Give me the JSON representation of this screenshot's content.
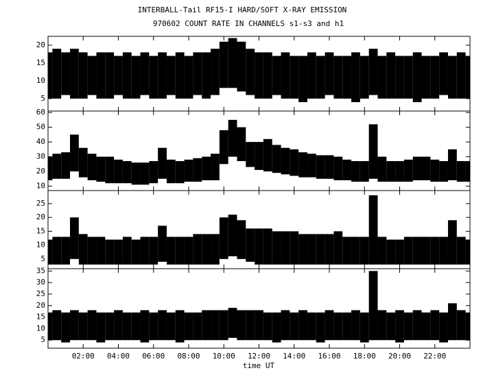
{
  "chart_data": [
    {
      "type": "band",
      "title": "INTERBALL-Tail RF15-I HARD/SOFT X-RAY EMISSION",
      "subtitle": "970602  COUNT RATE IN CHANNELS s1-s3 and h1",
      "color": "#000000",
      "xlim": [
        0,
        24
      ],
      "ylim": [
        1.5,
        22.5
      ],
      "yticks": [
        5,
        10,
        15,
        20
      ],
      "x": [
        0,
        0.5,
        1,
        1.5,
        2,
        2.5,
        3,
        3.5,
        4,
        4.5,
        5,
        5.5,
        6,
        6.5,
        7,
        7.5,
        8,
        8.5,
        9,
        9.5,
        10,
        10.5,
        11,
        11.5,
        12,
        12.5,
        13,
        13.5,
        14,
        14.5,
        15,
        15.5,
        16,
        16.5,
        17,
        17.5,
        18,
        18.5,
        19,
        19.5,
        20,
        20.5,
        21,
        21.5,
        22,
        22.5,
        23,
        23.5,
        24
      ],
      "high": [
        18,
        19,
        18,
        19,
        18,
        17,
        18,
        18,
        17,
        18,
        17,
        18,
        17,
        18,
        17,
        18,
        17,
        18,
        18,
        19,
        21,
        22,
        21,
        19,
        18,
        18,
        17,
        18,
        17,
        17,
        18,
        17,
        18,
        17,
        17,
        18,
        17,
        19,
        17,
        18,
        17,
        17,
        18,
        17,
        17,
        18,
        17,
        18,
        17
      ],
      "low": [
        5,
        5,
        6,
        5,
        5,
        6,
        5,
        5,
        6,
        5,
        5,
        6,
        5,
        5,
        6,
        5,
        5,
        6,
        5,
        6,
        8,
        8,
        7,
        6,
        5,
        5,
        6,
        5,
        5,
        4,
        5,
        5,
        6,
        5,
        5,
        4,
        5,
        6,
        5,
        5,
        5,
        5,
        4,
        5,
        5,
        6,
        5,
        5,
        5
      ]
    },
    {
      "type": "band",
      "color": "#000000",
      "xlim": [
        0,
        24
      ],
      "ylim": [
        7,
        61
      ],
      "yticks": [
        10,
        20,
        30,
        40,
        50,
        60
      ],
      "x": [
        0,
        0.5,
        1,
        1.5,
        2,
        2.5,
        3,
        3.5,
        4,
        4.5,
        5,
        5.5,
        6,
        6.5,
        7,
        7.5,
        8,
        8.5,
        9,
        9.5,
        10,
        10.5,
        11,
        11.5,
        12,
        12.5,
        13,
        13.5,
        14,
        14.5,
        15,
        15.5,
        16,
        16.5,
        17,
        17.5,
        18,
        18.5,
        19,
        19.5,
        20,
        20.5,
        21,
        21.5,
        22,
        22.5,
        23,
        23.5,
        24
      ],
      "high": [
        30,
        32,
        33,
        45,
        36,
        32,
        30,
        30,
        28,
        27,
        26,
        26,
        27,
        36,
        28,
        27,
        28,
        29,
        30,
        32,
        48,
        55,
        50,
        40,
        40,
        42,
        38,
        36,
        35,
        33,
        32,
        31,
        31,
        30,
        28,
        27,
        27,
        52,
        30,
        27,
        27,
        28,
        30,
        30,
        28,
        27,
        35,
        27,
        27
      ],
      "low": [
        14,
        15,
        15,
        20,
        16,
        14,
        13,
        12,
        12,
        12,
        11,
        11,
        12,
        15,
        12,
        12,
        13,
        13,
        14,
        14,
        25,
        30,
        27,
        23,
        21,
        20,
        19,
        18,
        17,
        16,
        16,
        15,
        15,
        14,
        14,
        13,
        13,
        15,
        13,
        13,
        13,
        13,
        14,
        14,
        13,
        13,
        14,
        13,
        13
      ]
    },
    {
      "type": "band",
      "color": "#000000",
      "xlim": [
        0,
        24
      ],
      "ylim": [
        1.5,
        29.7
      ],
      "yticks": [
        5,
        10,
        15,
        20,
        25
      ],
      "x": [
        0,
        0.5,
        1,
        1.5,
        2,
        2.5,
        3,
        3.5,
        4,
        4.5,
        5,
        5.5,
        6,
        6.5,
        7,
        7.5,
        8,
        8.5,
        9,
        9.5,
        10,
        10.5,
        11,
        11.5,
        12,
        12.5,
        13,
        13.5,
        14,
        14.5,
        15,
        15.5,
        16,
        16.5,
        17,
        17.5,
        18,
        18.5,
        19,
        19.5,
        20,
        20.5,
        21,
        21.5,
        22,
        22.5,
        23,
        23.5,
        24
      ],
      "high": [
        12,
        13,
        13,
        20,
        14,
        13,
        13,
        12,
        12,
        13,
        12,
        13,
        13,
        17,
        13,
        13,
        13,
        14,
        14,
        14,
        20,
        21,
        19,
        16,
        16,
        16,
        15,
        15,
        15,
        14,
        14,
        14,
        14,
        15,
        13,
        13,
        13,
        28,
        13,
        12,
        12,
        13,
        13,
        13,
        13,
        13,
        19,
        13,
        12
      ],
      "low": [
        3,
        3,
        3,
        5,
        3,
        3,
        3,
        3,
        3,
        3,
        3,
        3,
        3,
        4,
        3,
        3,
        3,
        3,
        3,
        3,
        5,
        6,
        5,
        4,
        3,
        3,
        3,
        3,
        3,
        3,
        3,
        3,
        3,
        3,
        3,
        3,
        3,
        3,
        3,
        3,
        3,
        3,
        3,
        3,
        3,
        3,
        3,
        3,
        3
      ]
    },
    {
      "type": "band",
      "color": "#000000",
      "xlabel": "time UT",
      "xlim": [
        0,
        24
      ],
      "ylim": [
        1.5,
        36
      ],
      "yticks": [
        5,
        10,
        15,
        20,
        25,
        30,
        35
      ],
      "xticks": [
        {
          "value": 2,
          "label": "02:00"
        },
        {
          "value": 4,
          "label": "04:00"
        },
        {
          "value": 6,
          "label": "06:00"
        },
        {
          "value": 8,
          "label": "08:00"
        },
        {
          "value": 10,
          "label": "10:00"
        },
        {
          "value": 12,
          "label": "12:00"
        },
        {
          "value": 14,
          "label": "14:00"
        },
        {
          "value": 16,
          "label": "16:00"
        },
        {
          "value": 18,
          "label": "18:00"
        },
        {
          "value": 20,
          "label": "20:00"
        },
        {
          "value": 22,
          "label": "22:00"
        }
      ],
      "x": [
        0,
        0.5,
        1,
        1.5,
        2,
        2.5,
        3,
        3.5,
        4,
        4.5,
        5,
        5.5,
        6,
        6.5,
        7,
        7.5,
        8,
        8.5,
        9,
        9.5,
        10,
        10.5,
        11,
        11.5,
        12,
        12.5,
        13,
        13.5,
        14,
        14.5,
        15,
        15.5,
        16,
        16.5,
        17,
        17.5,
        18,
        18.5,
        19,
        19.5,
        20,
        20.5,
        21,
        21.5,
        22,
        22.5,
        23,
        23.5,
        24
      ],
      "high": [
        17,
        18,
        17,
        18,
        17,
        18,
        17,
        17,
        18,
        17,
        17,
        18,
        17,
        18,
        17,
        18,
        17,
        17,
        18,
        18,
        18,
        19,
        18,
        18,
        18,
        17,
        17,
        18,
        17,
        18,
        17,
        17,
        18,
        17,
        17,
        18,
        17,
        35,
        18,
        17,
        18,
        17,
        18,
        17,
        18,
        17,
        21,
        18,
        17
      ],
      "low": [
        5,
        5,
        4,
        5,
        5,
        5,
        4,
        5,
        5,
        5,
        5,
        4,
        5,
        5,
        5,
        4,
        5,
        5,
        5,
        5,
        5,
        6,
        5,
        5,
        5,
        5,
        4,
        5,
        5,
        5,
        5,
        4,
        5,
        5,
        5,
        5,
        4,
        5,
        5,
        5,
        4,
        5,
        5,
        5,
        5,
        4,
        5,
        5,
        5
      ]
    }
  ]
}
